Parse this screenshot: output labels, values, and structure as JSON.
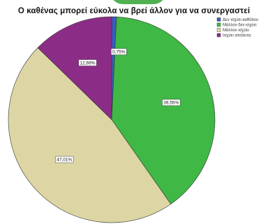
{
  "chart_data": {
    "type": "pie",
    "title": "Ο καθένας μπορεί εύκολα να βρεί άλλον για να συνεργαστεί",
    "slices": [
      {
        "name": "Δεν ισχύει καθόλου",
        "value": 0.75,
        "label": "0,75%",
        "color": "#3b5bbf"
      },
      {
        "name": "Μάλλον δεν ισχύει",
        "value": 39.55,
        "label": "39,55%",
        "color": "#3fb845"
      },
      {
        "name": "Μάλλον ισχύει",
        "value": 47.01,
        "label": "47,01%",
        "color": "#ddd6a4"
      },
      {
        "name": "Ισχύει απόλυτα",
        "value": 12.69,
        "label": "12,69%",
        "color": "#8b2d86"
      }
    ],
    "legend_position": "top-right"
  }
}
